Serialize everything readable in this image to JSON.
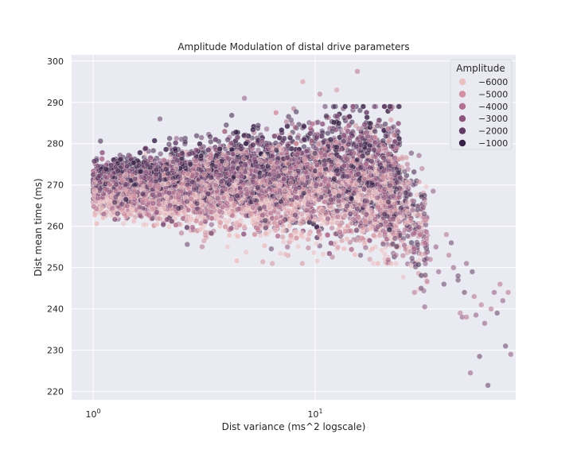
{
  "chart_data": {
    "type": "scatter",
    "title": "Amplitude Modulation of distal drive parameters",
    "xlabel": "Dist variance (ms^2 logscale)",
    "ylabel": "Dist mean time (ms)",
    "xscale": "log",
    "xlim": [
      0.8,
      80
    ],
    "ylim": [
      218,
      301.5
    ],
    "x_ticks": [
      {
        "value": 1,
        "base": "10",
        "exp": "0"
      },
      {
        "value": 10,
        "base": "10",
        "exp": "1"
      }
    ],
    "y_ticks": [
      220,
      230,
      240,
      250,
      260,
      270,
      280,
      290,
      300
    ],
    "grid": true,
    "legend": {
      "title": "Amplitude",
      "placement": "top-right",
      "entries": [
        {
          "label": "−6000",
          "color": "#e9c0c2"
        },
        {
          "label": "−5000",
          "color": "#d18f9f"
        },
        {
          "label": "−4000",
          "color": "#b0708f"
        },
        {
          "label": "−3000",
          "color": "#8c537d"
        },
        {
          "label": "−2000",
          "color": "#633c66"
        },
        {
          "label": "−1000",
          "color": "#371f45"
        }
      ]
    },
    "series": [
      {
        "name": "point cloud (approx. density)",
        "hue": "Amplitude -6000 to -1000",
        "points_estimated": 9000
      }
    ],
    "tail_points": [
      {
        "x": 33,
        "y": 252
      },
      {
        "x": 36,
        "y": 249
      },
      {
        "x": 38,
        "y": 246
      },
      {
        "x": 40,
        "y": 253
      },
      {
        "x": 42,
        "y": 250
      },
      {
        "x": 44,
        "y": 247
      },
      {
        "x": 45,
        "y": 239
      },
      {
        "x": 46,
        "y": 238
      },
      {
        "x": 47,
        "y": 244
      },
      {
        "x": 48,
        "y": 238
      },
      {
        "x": 50,
        "y": 224.5
      },
      {
        "x": 51,
        "y": 249
      },
      {
        "x": 52,
        "y": 243
      },
      {
        "x": 53,
        "y": 238.5
      },
      {
        "x": 55,
        "y": 228.5
      },
      {
        "x": 56,
        "y": 241
      },
      {
        "x": 58,
        "y": 236.5
      },
      {
        "x": 60,
        "y": 221.5
      },
      {
        "x": 62,
        "y": 240
      },
      {
        "x": 64,
        "y": 244
      },
      {
        "x": 66,
        "y": 239
      },
      {
        "x": 68,
        "y": 246
      },
      {
        "x": 70,
        "y": 242
      },
      {
        "x": 72,
        "y": 231
      },
      {
        "x": 74,
        "y": 244
      },
      {
        "x": 76,
        "y": 229
      },
      {
        "x": 44,
        "y": 248
      },
      {
        "x": 39,
        "y": 258
      },
      {
        "x": 35,
        "y": 255
      },
      {
        "x": 30,
        "y": 245
      },
      {
        "x": 28,
        "y": 244
      },
      {
        "x": 34,
        "y": 268.5
      },
      {
        "x": 31,
        "y": 263
      },
      {
        "x": 26,
        "y": 275
      },
      {
        "x": 48,
        "y": 251
      },
      {
        "x": 41,
        "y": 256
      }
    ],
    "outliers": [
      {
        "x": 8.8,
        "y": 295
      },
      {
        "x": 15.5,
        "y": 297.5
      },
      {
        "x": 4.8,
        "y": 291
      },
      {
        "x": 2.0,
        "y": 286
      },
      {
        "x": 12.5,
        "y": 293
      },
      {
        "x": 10.5,
        "y": 292
      },
      {
        "x": 7.5,
        "y": 255
      },
      {
        "x": 16,
        "y": 253
      }
    ]
  }
}
